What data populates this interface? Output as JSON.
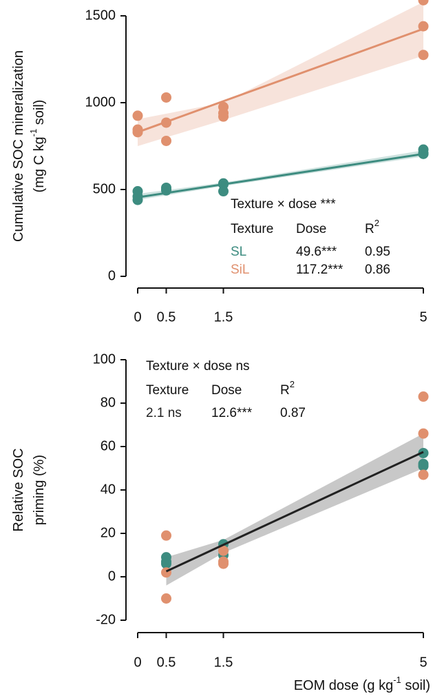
{
  "chart_data": [
    {
      "type": "scatter",
      "ylabel": [
        [
          "Cumulative SOC mineralization"
        ],
        [
          "(mg C kg",
          "-1",
          " soil)"
        ]
      ],
      "xlim": [
        0,
        5
      ],
      "xticks": [
        0,
        0.5,
        1.5,
        5
      ],
      "ylim": [
        0,
        1500
      ],
      "yticks": [
        0,
        500,
        1000,
        1500
      ],
      "series": [
        {
          "name": "SL",
          "color": "#3d8c80",
          "x": [
            0,
            0,
            0,
            0.5,
            0.5,
            0.5,
            1.5,
            1.5,
            1.5,
            5,
            5,
            5
          ],
          "values": [
            490,
            460,
            440,
            510,
            500,
            495,
            535,
            530,
            490,
            730,
            710,
            705
          ],
          "fit": {
            "x": [
              0,
              5
            ],
            "values": [
              455,
              705
            ]
          },
          "ci": {
            "x": [
              0,
              1.5,
              5
            ],
            "lower": [
              440,
              520,
              690
            ],
            "upper": [
              475,
              540,
              725
            ]
          }
        },
        {
          "name": "SiL",
          "color": "#e0906e",
          "x": [
            0,
            0,
            0,
            0.5,
            0.5,
            0.5,
            1.5,
            1.5,
            1.5,
            5,
            5,
            5
          ],
          "values": [
            925,
            845,
            830,
            1030,
            885,
            780,
            975,
            940,
            920,
            1590,
            1440,
            1275
          ],
          "fit": {
            "x": [
              0,
              5
            ],
            "values": [
              830,
              1425
            ]
          },
          "ci": {
            "x": [
              0,
              1.5,
              5
            ],
            "lower": [
              750,
              900,
              1270
            ],
            "upper": [
              905,
              1000,
              1580
            ]
          }
        }
      ],
      "stats": {
        "title": "Texture × dose ***",
        "header": [
          [
            "Texture"
          ],
          [
            "Dose"
          ],
          [
            "R",
            "2"
          ]
        ],
        "rows": [
          {
            "color": "#3d8c80",
            "cells": [
              "SL",
              "49.6***",
              "0.95"
            ]
          },
          {
            "color": "#e0906e",
            "cells": [
              "SiL",
              "117.2***",
              "0.86"
            ]
          }
        ]
      }
    },
    {
      "type": "scatter",
      "ylabel": [
        [
          "Relative SOC"
        ],
        [
          "priming (%)"
        ]
      ],
      "xlabel": [
        [
          "EOM dose (g kg",
          "-1",
          " soil)"
        ]
      ],
      "xlim": [
        0,
        5
      ],
      "xticks": [
        0,
        0.5,
        1.5,
        5
      ],
      "ylim": [
        -20,
        100
      ],
      "yticks": [
        -20,
        0,
        20,
        40,
        60,
        80,
        100
      ],
      "series": [
        {
          "color": "#3d8c80",
          "x": [
            0.5,
            0.5,
            0.5,
            1.5,
            1.5,
            1.5,
            5,
            5,
            5
          ],
          "values": [
            9,
            7,
            6,
            15,
            12,
            10,
            57,
            52,
            51
          ]
        },
        {
          "color": "#e0906e",
          "x": [
            0.5,
            0.5,
            0.5,
            1.5,
            1.5,
            1.5,
            5,
            5,
            5
          ],
          "values": [
            19,
            2,
            -10,
            12,
            7,
            6,
            83,
            66,
            47
          ]
        },
        {
          "color": "#222222",
          "x": [],
          "values": [],
          "fit": {
            "x": [
              0.5,
              5
            ],
            "values": [
              2.5,
              57.5
            ]
          },
          "ci": {
            "x": [
              0.5,
              1.5,
              5
            ],
            "lower": [
              -4,
              11,
              50
            ],
            "upper": [
              9,
              17,
              66
            ]
          }
        }
      ],
      "stats": {
        "title": "Texture × dose ns",
        "header": [
          [
            "Texture"
          ],
          [
            "Dose"
          ],
          [
            "R",
            "2"
          ]
        ],
        "rows": [
          {
            "color": "#222222",
            "cells": [
              "2.1 ns",
              "12.6***",
              "0.87"
            ]
          }
        ]
      }
    }
  ]
}
